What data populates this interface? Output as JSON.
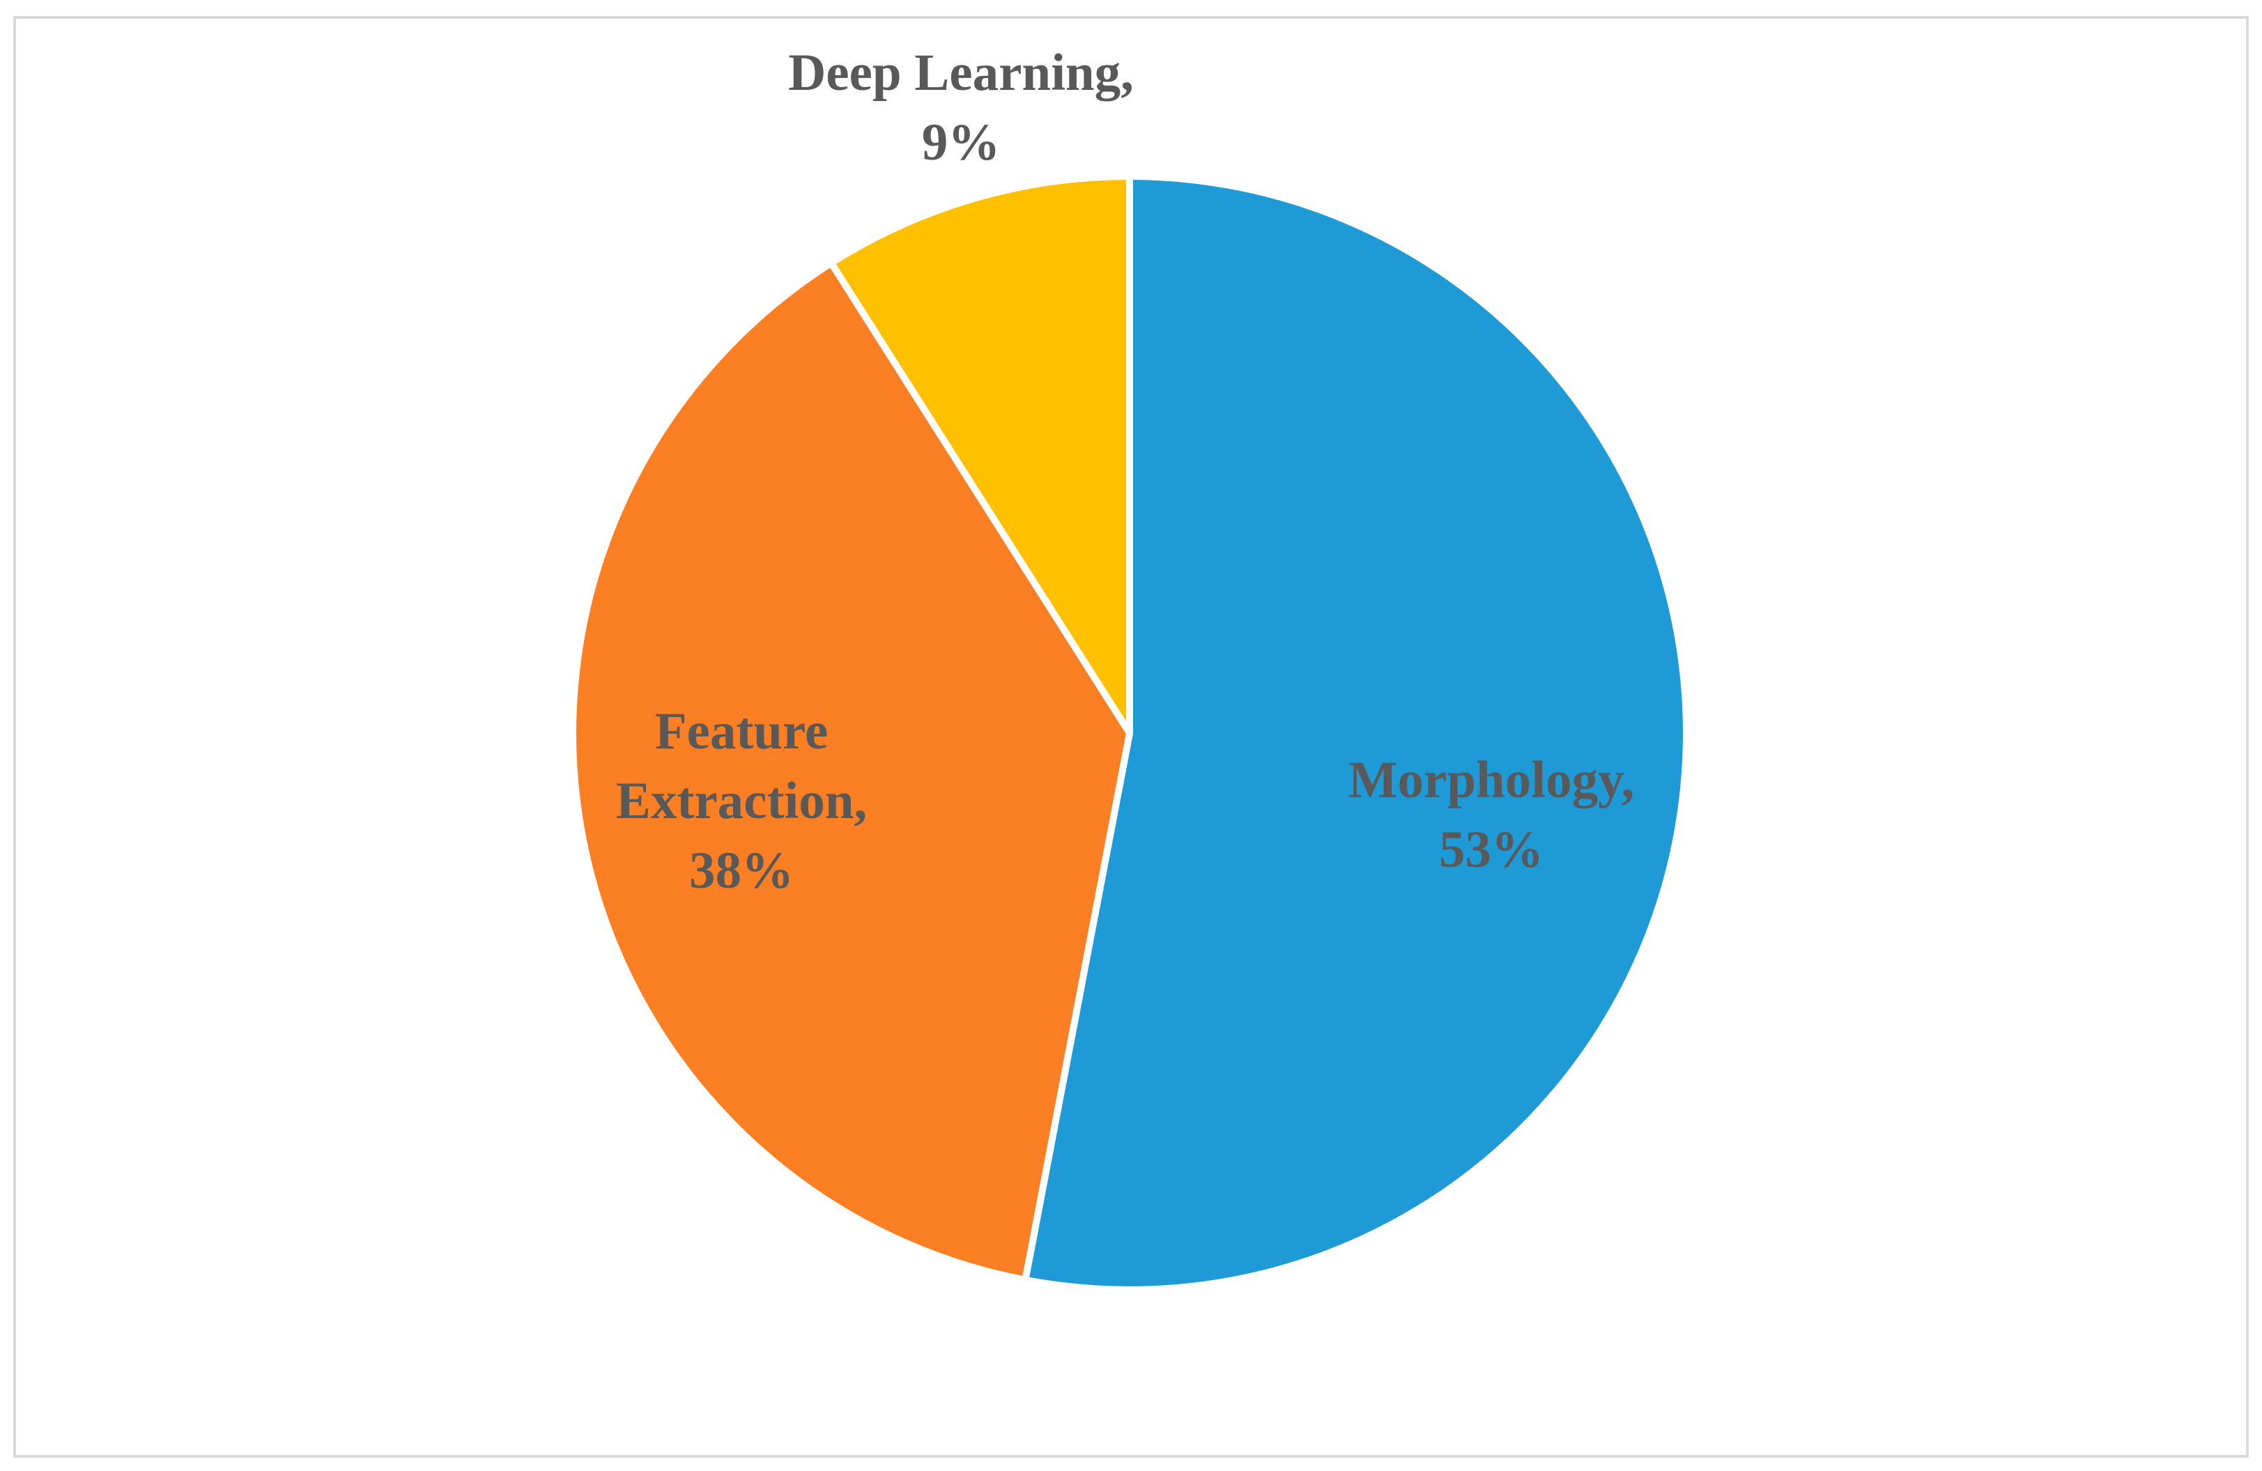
{
  "chart_data": {
    "type": "pie",
    "categories": [
      "Morphology,",
      "Feature Extraction,",
      "Deep Learning,"
    ],
    "values": [
      53,
      38,
      9
    ],
    "value_labels": [
      "53%",
      "38%",
      "9%"
    ],
    "colors": [
      "#1e9bd7",
      "#fd7f23",
      "#ffc000"
    ]
  }
}
